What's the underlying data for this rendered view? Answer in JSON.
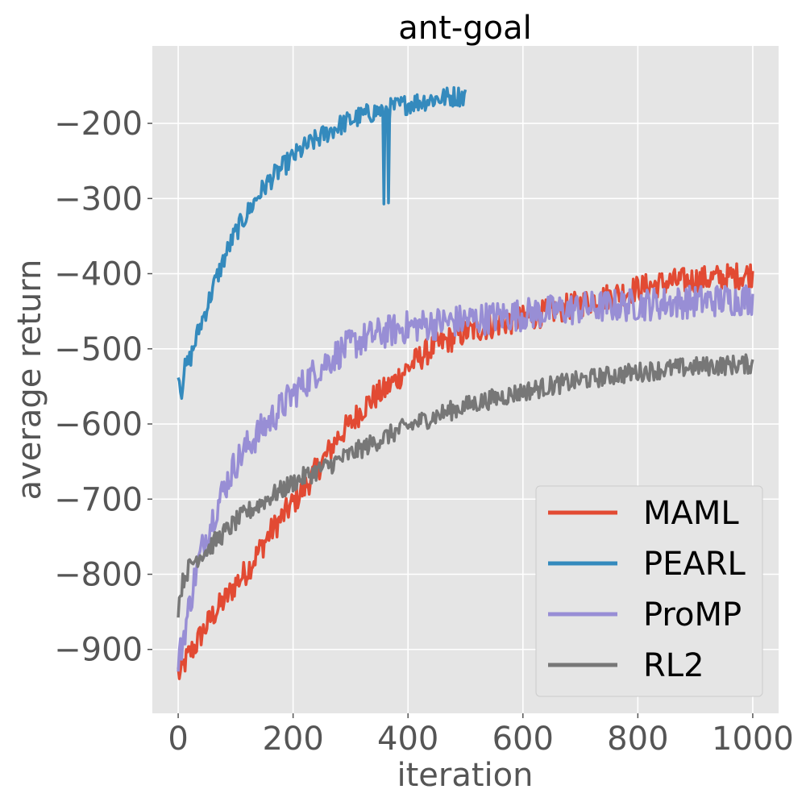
{
  "chart_data": {
    "type": "line",
    "title": "ant-goal",
    "xlabel": "iteration",
    "ylabel": "average return",
    "xlim": [
      -45,
      1045
    ],
    "ylim": [
      -985,
      -97
    ],
    "xticks": [
      0,
      200,
      400,
      600,
      800,
      1000
    ],
    "yticks": [
      -900,
      -800,
      -700,
      -600,
      -500,
      -400,
      -300,
      -200
    ],
    "grid": true,
    "legend_position": "bottom-right",
    "series": [
      {
        "name": "MAML",
        "color": "#E24A33",
        "points": [
          [
            0,
            -930
          ],
          [
            5,
            -935
          ],
          [
            10,
            -920
          ],
          [
            20,
            -905
          ],
          [
            30,
            -895
          ],
          [
            40,
            -880
          ],
          [
            50,
            -868
          ],
          [
            60,
            -855
          ],
          [
            70,
            -845
          ],
          [
            80,
            -835
          ],
          [
            90,
            -825
          ],
          [
            100,
            -812
          ],
          [
            120,
            -795
          ],
          [
            140,
            -770
          ],
          [
            160,
            -745
          ],
          [
            180,
            -725
          ],
          [
            200,
            -705
          ],
          [
            220,
            -685
          ],
          [
            240,
            -662
          ],
          [
            260,
            -640
          ],
          [
            280,
            -615
          ],
          [
            300,
            -600
          ],
          [
            320,
            -580
          ],
          [
            340,
            -565
          ],
          [
            360,
            -555
          ],
          [
            380,
            -540
          ],
          [
            400,
            -525
          ],
          [
            420,
            -512
          ],
          [
            440,
            -500
          ],
          [
            460,
            -492
          ],
          [
            480,
            -485
          ],
          [
            500,
            -478
          ],
          [
            550,
            -468
          ],
          [
            600,
            -460
          ],
          [
            650,
            -450
          ],
          [
            700,
            -440
          ],
          [
            750,
            -430
          ],
          [
            800,
            -420
          ],
          [
            850,
            -412
          ],
          [
            900,
            -408
          ],
          [
            950,
            -405
          ],
          [
            1000,
            -400
          ]
        ]
      },
      {
        "name": "PEARL",
        "color": "#348ABD",
        "points": [
          [
            0,
            -525
          ],
          [
            5,
            -560
          ],
          [
            10,
            -530
          ],
          [
            20,
            -515
          ],
          [
            30,
            -490
          ],
          [
            40,
            -465
          ],
          [
            50,
            -445
          ],
          [
            60,
            -420
          ],
          [
            70,
            -400
          ],
          [
            80,
            -380
          ],
          [
            90,
            -362
          ],
          [
            100,
            -345
          ],
          [
            120,
            -320
          ],
          [
            140,
            -295
          ],
          [
            160,
            -275
          ],
          [
            180,
            -260
          ],
          [
            200,
            -245
          ],
          [
            220,
            -232
          ],
          [
            240,
            -222
          ],
          [
            260,
            -212
          ],
          [
            280,
            -203
          ],
          [
            300,
            -196
          ],
          [
            320,
            -190
          ],
          [
            340,
            -185
          ],
          [
            360,
            -182
          ],
          [
            380,
            -178
          ],
          [
            400,
            -174
          ],
          [
            420,
            -171
          ],
          [
            440,
            -168
          ],
          [
            460,
            -166
          ],
          [
            480,
            -164
          ],
          [
            500,
            -163
          ]
        ]
      },
      {
        "name": "ProMP",
        "color": "#988ED5",
        "points": [
          [
            0,
            -915
          ],
          [
            5,
            -900
          ],
          [
            10,
            -880
          ],
          [
            20,
            -840
          ],
          [
            30,
            -800
          ],
          [
            40,
            -770
          ],
          [
            50,
            -745
          ],
          [
            60,
            -725
          ],
          [
            70,
            -705
          ],
          [
            80,
            -685
          ],
          [
            90,
            -668
          ],
          [
            100,
            -652
          ],
          [
            120,
            -630
          ],
          [
            140,
            -612
          ],
          [
            160,
            -595
          ],
          [
            180,
            -578
          ],
          [
            200,
            -560
          ],
          [
            220,
            -545
          ],
          [
            240,
            -530
          ],
          [
            260,
            -516
          ],
          [
            280,
            -505
          ],
          [
            300,
            -495
          ],
          [
            320,
            -488
          ],
          [
            340,
            -482
          ],
          [
            360,
            -478
          ],
          [
            380,
            -474
          ],
          [
            400,
            -471
          ],
          [
            450,
            -466
          ],
          [
            500,
            -462
          ],
          [
            550,
            -458
          ],
          [
            600,
            -454
          ],
          [
            650,
            -450
          ],
          [
            700,
            -446
          ],
          [
            750,
            -443
          ],
          [
            800,
            -441
          ],
          [
            850,
            -439
          ],
          [
            900,
            -437
          ],
          [
            950,
            -435
          ],
          [
            1000,
            -433
          ]
        ]
      },
      {
        "name": "RL2",
        "color": "#777777",
        "points": [
          [
            0,
            -845
          ],
          [
            5,
            -820
          ],
          [
            10,
            -805
          ],
          [
            20,
            -790
          ],
          [
            30,
            -780
          ],
          [
            40,
            -773
          ],
          [
            50,
            -767
          ],
          [
            60,
            -760
          ],
          [
            70,
            -752
          ],
          [
            80,
            -745
          ],
          [
            90,
            -738
          ],
          [
            100,
            -730
          ],
          [
            120,
            -718
          ],
          [
            140,
            -707
          ],
          [
            160,
            -697
          ],
          [
            180,
            -688
          ],
          [
            200,
            -678
          ],
          [
            220,
            -670
          ],
          [
            240,
            -663
          ],
          [
            260,
            -656
          ],
          [
            280,
            -648
          ],
          [
            300,
            -640
          ],
          [
            340,
            -625
          ],
          [
            380,
            -610
          ],
          [
            420,
            -597
          ],
          [
            460,
            -586
          ],
          [
            500,
            -576
          ],
          [
            550,
            -566
          ],
          [
            600,
            -557
          ],
          [
            650,
            -549
          ],
          [
            700,
            -542
          ],
          [
            750,
            -536
          ],
          [
            800,
            -531
          ],
          [
            850,
            -527
          ],
          [
            900,
            -524
          ],
          [
            950,
            -522
          ],
          [
            1000,
            -520
          ]
        ]
      }
    ]
  }
}
